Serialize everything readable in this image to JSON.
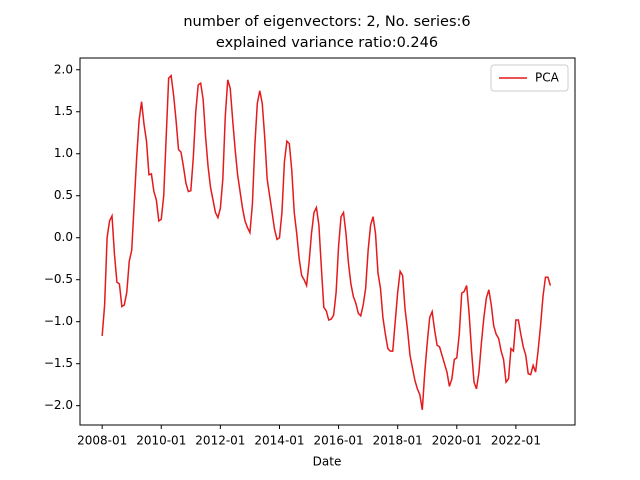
{
  "chart_data": {
    "type": "line",
    "title": [
      "number of eigenvectors: 2, No. series:6",
      "explained variance ratio:0.246"
    ],
    "xlabel": "Date",
    "x": [
      "2008-01",
      "2008-02",
      "2008-03",
      "2008-04",
      "2008-05",
      "2008-06",
      "2008-07",
      "2008-08",
      "2008-09",
      "2008-10",
      "2008-11",
      "2008-12",
      "2009-01",
      "2009-02",
      "2009-03",
      "2009-04",
      "2009-05",
      "2009-06",
      "2009-07",
      "2009-08",
      "2009-09",
      "2009-10",
      "2009-11",
      "2009-12",
      "2010-01",
      "2010-02",
      "2010-03",
      "2010-04",
      "2010-05",
      "2010-06",
      "2010-07",
      "2010-08",
      "2010-09",
      "2010-10",
      "2010-11",
      "2010-12",
      "2011-01",
      "2011-02",
      "2011-03",
      "2011-04",
      "2011-05",
      "2011-06",
      "2011-07",
      "2011-08",
      "2011-09",
      "2011-10",
      "2011-11",
      "2011-12",
      "2012-01",
      "2012-02",
      "2012-03",
      "2012-04",
      "2012-05",
      "2012-06",
      "2012-07",
      "2012-08",
      "2012-09",
      "2012-10",
      "2012-11",
      "2012-12",
      "2013-01",
      "2013-02",
      "2013-03",
      "2013-04",
      "2013-05",
      "2013-06",
      "2013-07",
      "2013-08",
      "2013-09",
      "2013-10",
      "2013-11",
      "2013-12",
      "2014-01",
      "2014-02",
      "2014-03",
      "2014-04",
      "2014-05",
      "2014-06",
      "2014-07",
      "2014-08",
      "2014-09",
      "2014-10",
      "2014-11",
      "2014-12",
      "2015-01",
      "2015-02",
      "2015-03",
      "2015-04",
      "2015-05",
      "2015-06",
      "2015-07",
      "2015-08",
      "2015-09",
      "2015-10",
      "2015-11",
      "2015-12",
      "2016-01",
      "2016-02",
      "2016-03",
      "2016-04",
      "2016-05",
      "2016-06",
      "2016-07",
      "2016-08",
      "2016-09",
      "2016-10",
      "2016-11",
      "2016-12",
      "2017-01",
      "2017-02",
      "2017-03",
      "2017-04",
      "2017-05",
      "2017-06",
      "2017-07",
      "2017-08",
      "2017-09",
      "2017-10",
      "2017-11",
      "2017-12",
      "2018-01",
      "2018-02",
      "2018-03",
      "2018-04",
      "2018-05",
      "2018-06",
      "2018-07",
      "2018-08",
      "2018-09",
      "2018-10",
      "2018-11",
      "2018-12",
      "2019-01",
      "2019-02",
      "2019-03",
      "2019-04",
      "2019-05",
      "2019-06",
      "2019-07",
      "2019-08",
      "2019-09",
      "2019-10",
      "2019-11",
      "2019-12",
      "2020-01",
      "2020-02",
      "2020-03",
      "2020-04",
      "2020-05",
      "2020-06",
      "2020-07",
      "2020-08",
      "2020-09",
      "2020-10",
      "2020-11",
      "2020-12",
      "2021-01",
      "2021-02",
      "2021-03",
      "2021-04",
      "2021-05",
      "2021-06",
      "2021-07",
      "2021-08",
      "2021-09",
      "2021-10",
      "2021-11",
      "2021-12",
      "2022-01",
      "2022-02",
      "2022-03",
      "2022-04",
      "2022-05",
      "2022-06",
      "2022-07",
      "2022-08",
      "2022-09",
      "2022-10",
      "2022-11",
      "2022-12",
      "2023-01",
      "2023-02",
      "2023-03"
    ],
    "series": [
      {
        "name": "PCA",
        "color": "#e41a1c",
        "values": [
          -1.17,
          -0.8,
          0.0,
          0.2,
          0.26,
          -0.2,
          -0.53,
          -0.55,
          -0.82,
          -0.8,
          -0.65,
          -0.28,
          -0.15,
          0.4,
          0.95,
          1.4,
          1.62,
          1.35,
          1.15,
          0.75,
          0.76,
          0.55,
          0.45,
          0.2,
          0.22,
          0.5,
          1.2,
          1.9,
          1.93,
          1.7,
          1.4,
          1.05,
          1.02,
          0.85,
          0.65,
          0.55,
          0.56,
          0.95,
          1.5,
          1.82,
          1.84,
          1.65,
          1.2,
          0.85,
          0.6,
          0.45,
          0.3,
          0.24,
          0.35,
          0.7,
          1.45,
          1.88,
          1.78,
          1.4,
          1.05,
          0.75,
          0.55,
          0.35,
          0.2,
          0.12,
          0.06,
          0.4,
          1.1,
          1.6,
          1.75,
          1.6,
          1.2,
          0.7,
          0.5,
          0.3,
          0.1,
          -0.02,
          0.0,
          0.3,
          0.9,
          1.15,
          1.12,
          0.8,
          0.3,
          0.05,
          -0.25,
          -0.45,
          -0.5,
          -0.57,
          -0.3,
          0.05,
          0.3,
          0.36,
          0.15,
          -0.35,
          -0.83,
          -0.87,
          -0.98,
          -0.97,
          -0.92,
          -0.65,
          -0.1,
          0.25,
          0.3,
          0.05,
          -0.3,
          -0.55,
          -0.7,
          -0.78,
          -0.9,
          -0.93,
          -0.8,
          -0.6,
          -0.15,
          0.15,
          0.25,
          0.05,
          -0.42,
          -0.6,
          -0.95,
          -1.15,
          -1.32,
          -1.35,
          -1.35,
          -1.0,
          -0.65,
          -0.4,
          -0.45,
          -0.85,
          -1.1,
          -1.4,
          -1.55,
          -1.7,
          -1.8,
          -1.87,
          -2.05,
          -1.6,
          -1.25,
          -0.95,
          -0.88,
          -1.1,
          -1.28,
          -1.3,
          -1.4,
          -1.5,
          -1.6,
          -1.77,
          -1.68,
          -1.45,
          -1.43,
          -1.15,
          -0.66,
          -0.64,
          -0.57,
          -0.9,
          -1.35,
          -1.72,
          -1.8,
          -1.6,
          -1.25,
          -0.95,
          -0.72,
          -0.62,
          -0.8,
          -1.05,
          -1.15,
          -1.2,
          -1.35,
          -1.45,
          -1.72,
          -1.68,
          -1.32,
          -1.35,
          -0.98,
          -0.98,
          -1.15,
          -1.3,
          -1.4,
          -1.62,
          -1.63,
          -1.52,
          -1.6,
          -1.35,
          -1.05,
          -0.7,
          -0.47,
          -0.47,
          -0.57
        ]
      }
    ],
    "xlim": [
      "2007-04",
      "2024-01"
    ],
    "xticks": [
      "2008-01",
      "2010-01",
      "2012-01",
      "2014-01",
      "2016-01",
      "2018-01",
      "2020-01",
      "2022-01"
    ],
    "ylim": [
      -2.23,
      2.14
    ],
    "yticks": [
      {
        "value": -2,
        "label": "−2.0"
      },
      {
        "value": -1.5,
        "label": "−1.5"
      },
      {
        "value": -1,
        "label": "−1.0"
      },
      {
        "value": -0.5,
        "label": "−0.5"
      },
      {
        "value": 0,
        "label": "0.0"
      },
      {
        "value": 0.5,
        "label": "0.5"
      },
      {
        "value": 1,
        "label": "1.0"
      },
      {
        "value": 1.5,
        "label": "1.5"
      },
      {
        "value": 2,
        "label": "2.0"
      }
    ],
    "legend": "upper right"
  }
}
